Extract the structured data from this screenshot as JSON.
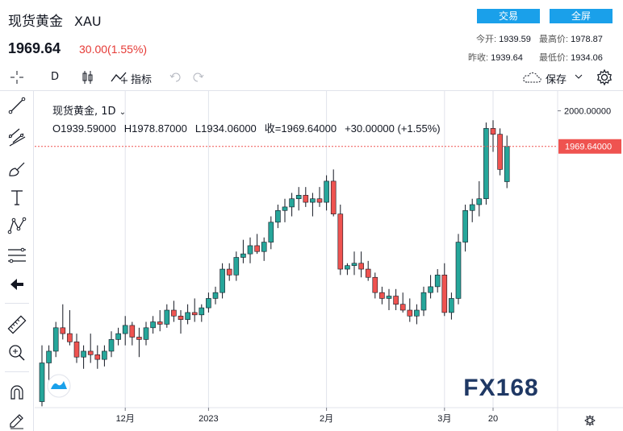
{
  "header": {
    "title": "现货黄金",
    "symbol": "XAU",
    "price": "1969.64",
    "change": "30.00(1.55%)",
    "trade_button": "交易",
    "fullscreen_button": "全屏",
    "stats": {
      "open_label": "今开:",
      "open": "1939.59",
      "high_label": "最高价:",
      "high": "1978.87",
      "prev_label": "昨收:",
      "prev": "1939.64",
      "low_label": "最低价:",
      "low": "1934.06"
    }
  },
  "toolbar": {
    "interval": "D",
    "indicators_label": "指标",
    "save_label": "保存"
  },
  "legend": {
    "title": "现货黄金, 1D",
    "open": "O1939.59000",
    "high": "H1978.87000",
    "low": "L1934.06000",
    "close": "收=1969.64000",
    "change": "+30.00000 (+1.55%)"
  },
  "watermark": "FX168",
  "colors": {
    "up": "#26a69a",
    "down": "#ef5350",
    "accent": "#1aa0ea"
  },
  "chart_data": {
    "type": "candlestick",
    "y_ticks": [
      {
        "value": 2000,
        "label": "2000.00000"
      }
    ],
    "last_price": 1969.64,
    "last_price_label": "1969.64000",
    "x_ticks": [
      {
        "index": 12,
        "label": "12月"
      },
      {
        "index": 24,
        "label": "2023"
      },
      {
        "index": 41,
        "label": "2月"
      },
      {
        "index": 58,
        "label": "3月"
      },
      {
        "index": 65,
        "label": "20"
      }
    ],
    "candles": [
      [
        1752,
        1800,
        1748,
        1785
      ],
      [
        1785,
        1800,
        1770,
        1795
      ],
      [
        1795,
        1820,
        1790,
        1815
      ],
      [
        1815,
        1835,
        1805,
        1810
      ],
      [
        1810,
        1830,
        1800,
        1803
      ],
      [
        1803,
        1810,
        1785,
        1790
      ],
      [
        1790,
        1800,
        1780,
        1795
      ],
      [
        1795,
        1810,
        1785,
        1792
      ],
      [
        1792,
        1800,
        1780,
        1788
      ],
      [
        1788,
        1800,
        1782,
        1795
      ],
      [
        1795,
        1812,
        1790,
        1805
      ],
      [
        1805,
        1815,
        1800,
        1810
      ],
      [
        1810,
        1825,
        1800,
        1817
      ],
      [
        1817,
        1820,
        1800,
        1807
      ],
      [
        1807,
        1815,
        1790,
        1805
      ],
      [
        1805,
        1820,
        1800,
        1815
      ],
      [
        1815,
        1825,
        1810,
        1820
      ],
      [
        1820,
        1830,
        1812,
        1818
      ],
      [
        1818,
        1835,
        1815,
        1830
      ],
      [
        1830,
        1838,
        1820,
        1825
      ],
      [
        1825,
        1830,
        1810,
        1822
      ],
      [
        1822,
        1835,
        1818,
        1828
      ],
      [
        1828,
        1840,
        1820,
        1826
      ],
      [
        1826,
        1835,
        1820,
        1832
      ],
      [
        1832,
        1845,
        1828,
        1840
      ],
      [
        1840,
        1850,
        1835,
        1845
      ],
      [
        1845,
        1870,
        1840,
        1865
      ],
      [
        1865,
        1870,
        1855,
        1860
      ],
      [
        1860,
        1880,
        1855,
        1875
      ],
      [
        1875,
        1890,
        1870,
        1878
      ],
      [
        1878,
        1892,
        1870,
        1885
      ],
      [
        1885,
        1895,
        1878,
        1880
      ],
      [
        1880,
        1892,
        1872,
        1888
      ],
      [
        1888,
        1910,
        1882,
        1905
      ],
      [
        1905,
        1920,
        1900,
        1915
      ],
      [
        1915,
        1925,
        1905,
        1918
      ],
      [
        1918,
        1930,
        1910,
        1925
      ],
      [
        1925,
        1935,
        1915,
        1928
      ],
      [
        1928,
        1935,
        1918,
        1922
      ],
      [
        1922,
        1930,
        1910,
        1925
      ],
      [
        1925,
        1935,
        1918,
        1922
      ],
      [
        1922,
        1945,
        1915,
        1940
      ],
      [
        1940,
        1950,
        1910,
        1912
      ],
      [
        1912,
        1920,
        1860,
        1865
      ],
      [
        1865,
        1870,
        1860,
        1868
      ],
      [
        1868,
        1880,
        1860,
        1870
      ],
      [
        1870,
        1880,
        1858,
        1865
      ],
      [
        1865,
        1872,
        1855,
        1858
      ],
      [
        1858,
        1862,
        1840,
        1845
      ],
      [
        1845,
        1850,
        1835,
        1840
      ],
      [
        1840,
        1848,
        1830,
        1842
      ],
      [
        1842,
        1848,
        1830,
        1835
      ],
      [
        1835,
        1845,
        1828,
        1830
      ],
      [
        1830,
        1840,
        1820,
        1825
      ],
      [
        1825,
        1835,
        1818,
        1830
      ],
      [
        1830,
        1850,
        1825,
        1845
      ],
      [
        1845,
        1860,
        1840,
        1850
      ],
      [
        1850,
        1865,
        1845,
        1860
      ],
      [
        1860,
        1870,
        1825,
        1828
      ],
      [
        1828,
        1845,
        1822,
        1840
      ],
      [
        1840,
        1895,
        1835,
        1888
      ],
      [
        1888,
        1920,
        1880,
        1915
      ],
      [
        1915,
        1925,
        1905,
        1920
      ],
      [
        1920,
        1940,
        1910,
        1925
      ],
      [
        1925,
        1990,
        1920,
        1985
      ],
      [
        1985,
        1992,
        1965,
        1980
      ],
      [
        1980,
        1985,
        1945,
        1950
      ],
      [
        1939.59,
        1978.87,
        1934.06,
        1969.64
      ]
    ],
    "ylim": [
      1740,
      2010
    ]
  }
}
